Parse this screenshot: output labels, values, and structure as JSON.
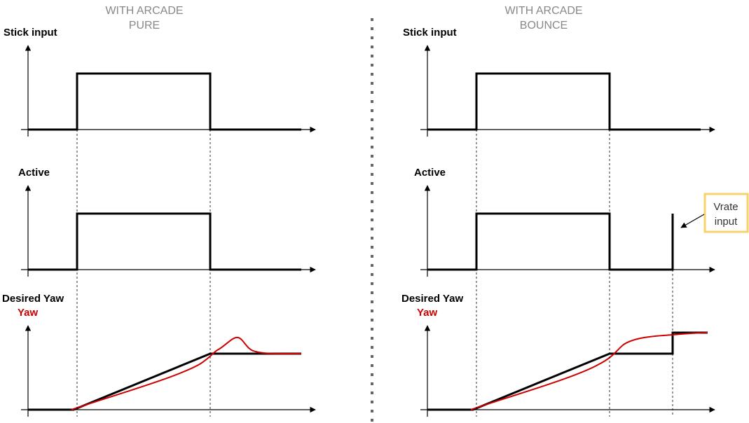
{
  "left_panel": {
    "title_line1": "WITH ARCADE",
    "title_line2": "PURE",
    "stick_label": "Stick input",
    "active_label": "Active",
    "desired_label": "Desired Yaw",
    "yaw_label": "Yaw"
  },
  "right_panel": {
    "title_line1": "WITH ARCADE",
    "title_line2": "BOUNCE",
    "stick_label": "Stick input",
    "active_label": "Active",
    "desired_label": "Desired Yaw",
    "yaw_label": "Yaw",
    "note_line1": "Vrate",
    "note_line2": "input"
  },
  "colors": {
    "signal": "#000000",
    "yaw": "#d00000",
    "title": "#888888",
    "note_border": "#f8d26a"
  }
}
